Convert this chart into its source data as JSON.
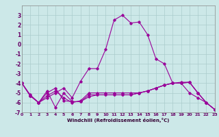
{
  "xlabel": "Windchill (Refroidissement éolien,°C)",
  "xlim": [
    0,
    23
  ],
  "ylim": [
    -7,
    4
  ],
  "xticks": [
    0,
    1,
    2,
    3,
    4,
    5,
    6,
    7,
    8,
    9,
    10,
    11,
    12,
    13,
    14,
    15,
    16,
    17,
    18,
    19,
    20,
    21,
    22,
    23
  ],
  "yticks": [
    -7,
    -6,
    -5,
    -4,
    -3,
    -2,
    -1,
    0,
    1,
    2,
    3
  ],
  "background_color": "#cce8e8",
  "grid_color": "#aacccc",
  "line_color": "#990099",
  "lines": [
    {
      "x": [
        0,
        1,
        2,
        3,
        4,
        5,
        6,
        7,
        8,
        9,
        10,
        11,
        12,
        13,
        14,
        15,
        16,
        17,
        18,
        19,
        20,
        21,
        22,
        23
      ],
      "y": [
        -4.0,
        -5.3,
        -6.0,
        -5.0,
        -4.5,
        -5.8,
        -5.9,
        -5.9,
        -5.2,
        -5.2,
        -5.2,
        -5.2,
        -5.2,
        -5.2,
        -5.0,
        -4.8,
        -4.5,
        -4.2,
        -4.0,
        -4.0,
        -3.9,
        -5.0,
        -6.0,
        -6.7
      ]
    },
    {
      "x": [
        0,
        1,
        2,
        3,
        4,
        5,
        6,
        7,
        8,
        9,
        10,
        11,
        12,
        13,
        14,
        15,
        16,
        17,
        18,
        19,
        20,
        21,
        22,
        23
      ],
      "y": [
        -4.0,
        -5.3,
        -6.0,
        -4.8,
        -6.5,
        -5.0,
        -5.9,
        -5.9,
        -5.4,
        -5.2,
        -5.2,
        -5.2,
        -5.2,
        -5.2,
        -5.0,
        -4.8,
        -4.5,
        -4.2,
        -4.0,
        -4.0,
        -3.9,
        -5.0,
        -6.0,
        -6.7
      ]
    },
    {
      "x": [
        0,
        1,
        2,
        3,
        4,
        5,
        6,
        7,
        8,
        9,
        10,
        11,
        12,
        13,
        14,
        15,
        16,
        17,
        18,
        19,
        20,
        21,
        22,
        23
      ],
      "y": [
        -4.0,
        -5.3,
        -6.0,
        -5.3,
        -4.8,
        -5.5,
        -6.0,
        -5.8,
        -5.0,
        -5.0,
        -5.0,
        -5.0,
        -5.0,
        -5.0,
        -5.0,
        -4.8,
        -4.5,
        -4.2,
        -4.0,
        -3.9,
        -3.9,
        -5.0,
        -6.0,
        -6.7
      ]
    },
    {
      "x": [
        0,
        1,
        2,
        3,
        4,
        5,
        6,
        7,
        8,
        9,
        10,
        11,
        12,
        13,
        14,
        15,
        16,
        17,
        18,
        19,
        20,
        21,
        22,
        23
      ],
      "y": [
        -4.0,
        -5.2,
        -6.0,
        -5.5,
        -5.0,
        -4.5,
        -5.5,
        -3.8,
        -2.5,
        -2.5,
        -0.5,
        2.5,
        3.0,
        2.2,
        2.3,
        1.0,
        -1.5,
        -2.0,
        -4.0,
        -4.0,
        -5.0,
        -5.5,
        -6.0,
        -6.7
      ]
    }
  ]
}
